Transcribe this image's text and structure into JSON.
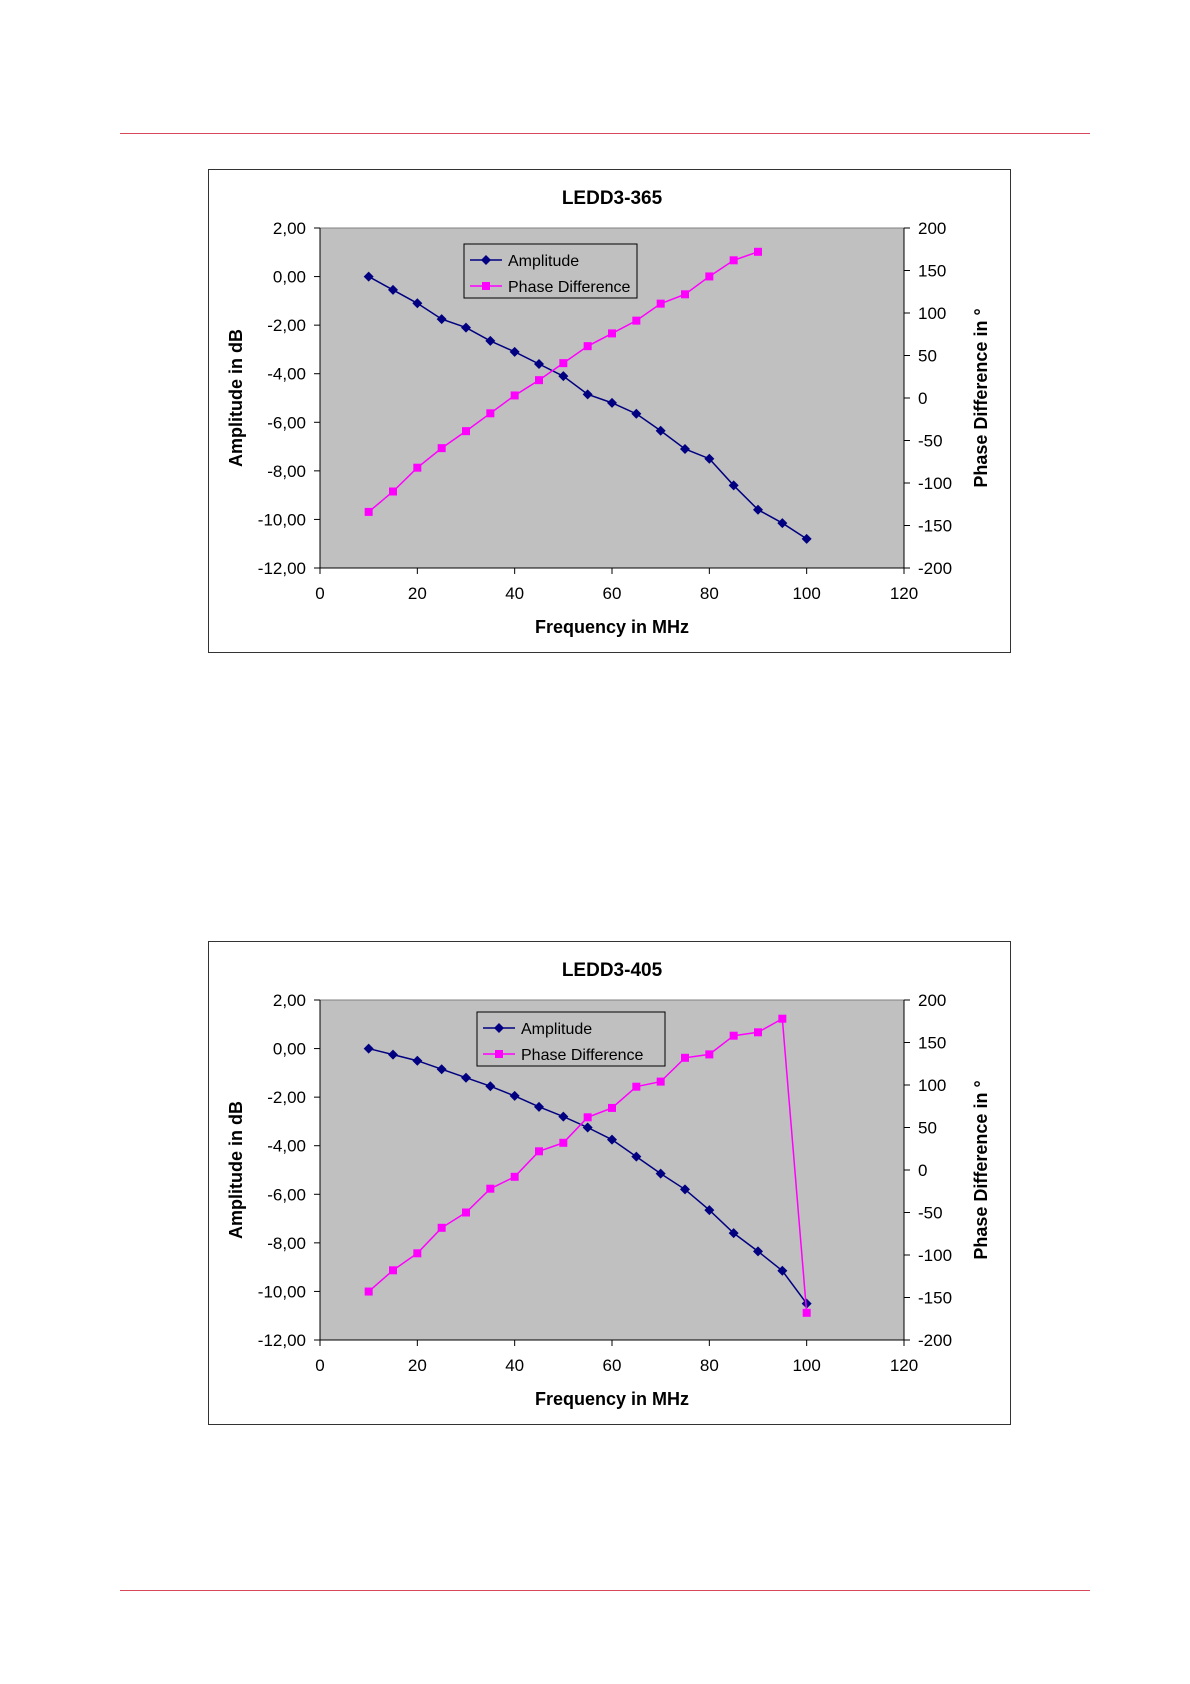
{
  "chart_data": [
    {
      "type": "line",
      "title": "LEDD3-365",
      "xlabel": "Frequency in MHz",
      "ylabel": "Amplitude in dB",
      "y2label": "Phase Difference in °",
      "xlim": [
        0,
        120
      ],
      "ylim": [
        -12,
        2
      ],
      "y2lim": [
        -200,
        200
      ],
      "x_ticks": [
        "0",
        "20",
        "40",
        "60",
        "80",
        "100",
        "120"
      ],
      "y_ticks": [
        "2,00",
        "0,00",
        "-2,00",
        "-4,00",
        "-6,00",
        "-8,00",
        "-10,00",
        "-12,00"
      ],
      "y2_ticks": [
        "200",
        "150",
        "100",
        "50",
        "0",
        "-50",
        "-100",
        "-150",
        "-200"
      ],
      "legend_position": "top-center",
      "plot_background": "#c0c0c0",
      "series": [
        {
          "name": "Amplitude",
          "axis": "left",
          "color": "#000080",
          "marker": "diamond",
          "x": [
            10,
            15,
            20,
            25,
            30,
            35,
            40,
            45,
            50,
            55,
            60,
            65,
            70,
            75,
            80,
            85,
            90,
            95,
            100
          ],
          "y": [
            0.0,
            -0.55,
            -1.1,
            -1.75,
            -2.1,
            -2.65,
            -3.1,
            -3.6,
            -4.1,
            -4.85,
            -5.2,
            -5.65,
            -6.35,
            -7.1,
            -7.5,
            -8.6,
            -9.6,
            -10.15,
            -10.8
          ]
        },
        {
          "name": "Phase Difference",
          "axis": "right",
          "color": "#ff00ff",
          "marker": "square",
          "x": [
            10,
            15,
            20,
            25,
            30,
            35,
            40,
            45,
            50,
            55,
            60,
            65,
            70,
            75,
            80,
            85,
            90
          ],
          "y": [
            -134,
            -110,
            -82,
            -59,
            -39,
            -18,
            3,
            21,
            41,
            61,
            76,
            91,
            111,
            122,
            143,
            162,
            172
          ]
        }
      ]
    },
    {
      "type": "line",
      "title": "LEDD3-405",
      "xlabel": "Frequency in MHz",
      "ylabel": "Amplitude in dB",
      "y2label": "Phase Difference in °",
      "xlim": [
        0,
        120
      ],
      "ylim": [
        -12,
        2
      ],
      "y2lim": [
        -200,
        200
      ],
      "x_ticks": [
        "0",
        "20",
        "40",
        "60",
        "80",
        "100",
        "120"
      ],
      "y_ticks": [
        "2,00",
        "0,00",
        "-2,00",
        "-4,00",
        "-6,00",
        "-8,00",
        "-10,00",
        "-12,00"
      ],
      "y2_ticks": [
        "200",
        "150",
        "100",
        "50",
        "0",
        "-50",
        "-100",
        "-150",
        "-200"
      ],
      "legend_position": "top-center",
      "plot_background": "#c0c0c0",
      "series": [
        {
          "name": "Amplitude",
          "axis": "left",
          "color": "#000080",
          "marker": "diamond",
          "x": [
            10,
            15,
            20,
            25,
            30,
            35,
            40,
            45,
            50,
            55,
            60,
            65,
            70,
            75,
            80,
            85,
            90,
            95,
            100
          ],
          "y": [
            0.0,
            -0.25,
            -0.5,
            -0.85,
            -1.2,
            -1.55,
            -1.95,
            -2.4,
            -2.8,
            -3.25,
            -3.75,
            -4.45,
            -5.15,
            -5.8,
            -6.65,
            -7.6,
            -8.35,
            -9.15,
            -10.5
          ]
        },
        {
          "name": "Phase Difference",
          "axis": "right",
          "color": "#ff00ff",
          "marker": "square",
          "x": [
            10,
            15,
            20,
            25,
            30,
            35,
            40,
            45,
            50,
            55,
            60,
            65,
            70,
            75,
            80,
            85,
            90,
            95,
            100
          ],
          "y": [
            -143,
            -118,
            -98,
            -68,
            -50,
            -22,
            -8,
            22,
            32,
            62,
            73,
            98,
            104,
            132,
            136,
            158,
            162,
            178,
            -168
          ]
        }
      ]
    }
  ]
}
